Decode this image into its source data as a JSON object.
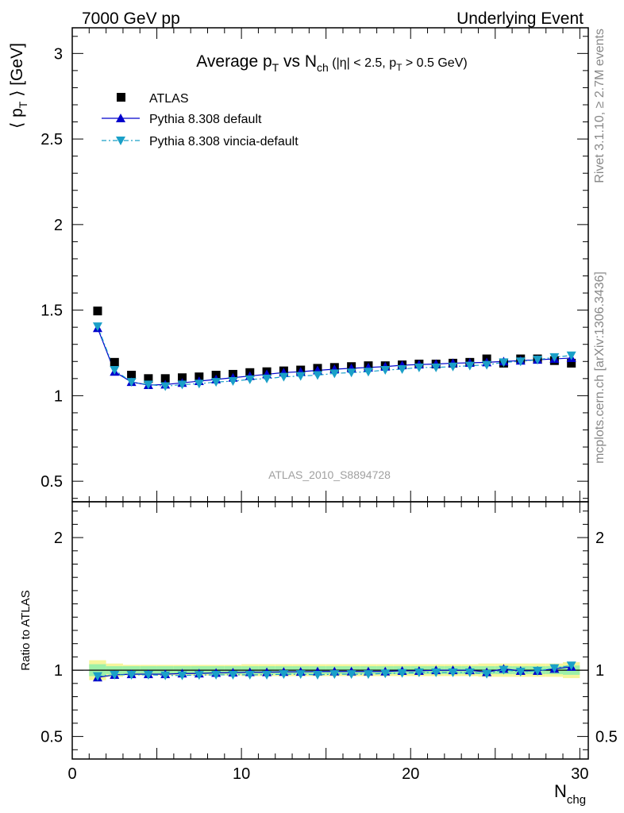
{
  "header": {
    "left": "7000 GeV pp",
    "right": "Underlying Event"
  },
  "title": {
    "main_a": "Average p",
    "main_sub_a": "T",
    "main_b": " vs N",
    "main_sub_b": "ch",
    "cuts_a": " (|η| < 2.5, p",
    "cuts_sub": "T",
    "cuts_b": " > 0.5 GeV)"
  },
  "side_labels": {
    "rivet": "Rivet 3.1.10, ≥ 2.7M events",
    "mcplots": "mcplots.cern.ch [arXiv:1306.3436]"
  },
  "watermark": "ATLAS_2010_S8894728",
  "axes": {
    "ylabel_main_a": "⟨ p",
    "ylabel_main_sub": "T",
    "ylabel_main_b": " ⟩ [GeV]",
    "ylabel_ratio": "Ratio to ATLAS",
    "xlabel": "N",
    "xlabel_sub": "chg"
  },
  "legend": [
    {
      "label": "ATLAS",
      "color": "#000000",
      "marker": "square"
    },
    {
      "label": "Pythia 8.308 default",
      "color": "#0000cc",
      "marker": "triangle-up"
    },
    {
      "label": "Pythia 8.308 vincia-default",
      "color": "#1aa0c8",
      "marker": "triangle-down"
    }
  ],
  "chart_data": {
    "type": "scatter",
    "x": [
      1.5,
      2.5,
      3.5,
      4.5,
      5.5,
      6.5,
      7.5,
      8.5,
      9.5,
      10.5,
      11.5,
      12.5,
      13.5,
      14.5,
      15.5,
      16.5,
      17.5,
      18.5,
      19.5,
      20.5,
      21.5,
      22.5,
      23.5,
      24.5,
      25.5,
      26.5,
      27.5,
      28.5,
      29.5
    ],
    "xlim": [
      0,
      30.5
    ],
    "x_ticks": [
      0,
      10,
      20,
      30
    ],
    "main": {
      "ylim": [
        0.38,
        3.15
      ],
      "y_ticks": [
        0.5,
        1,
        1.5,
        2,
        2.5,
        3
      ],
      "y_tick_labels": [
        "0.5",
        "1",
        "1.5",
        "2",
        "2.5",
        "3"
      ],
      "series": [
        {
          "name": "ATLAS",
          "values": [
            1.495,
            1.195,
            1.12,
            1.1,
            1.1,
            1.105,
            1.11,
            1.12,
            1.125,
            1.135,
            1.14,
            1.145,
            1.15,
            1.16,
            1.165,
            1.17,
            1.175,
            1.175,
            1.18,
            1.185,
            1.185,
            1.19,
            1.195,
            1.215,
            1.19,
            1.215,
            1.215,
            1.205,
            1.19
          ]
        },
        {
          "name": "Pythia 8.308 default",
          "values": [
            1.395,
            1.14,
            1.08,
            1.062,
            1.065,
            1.075,
            1.085,
            1.095,
            1.105,
            1.115,
            1.125,
            1.135,
            1.14,
            1.148,
            1.155,
            1.16,
            1.165,
            1.17,
            1.178,
            1.182,
            1.185,
            1.19,
            1.192,
            1.195,
            1.2,
            1.205,
            1.21,
            1.215,
            1.22
          ]
        },
        {
          "name": "Pythia 8.308 vincia-default",
          "values": [
            1.405,
            1.15,
            1.08,
            1.065,
            1.055,
            1.065,
            1.07,
            1.08,
            1.085,
            1.095,
            1.1,
            1.11,
            1.115,
            1.12,
            1.13,
            1.135,
            1.14,
            1.15,
            1.155,
            1.165,
            1.165,
            1.17,
            1.175,
            1.18,
            1.195,
            1.2,
            1.21,
            1.225,
            1.235
          ]
        }
      ]
    },
    "ratio": {
      "ylim": [
        0.33,
        2.27
      ],
      "y_ticks": [
        0.5,
        1,
        2
      ],
      "y_tick_labels": [
        "0.5",
        "1",
        "2"
      ],
      "band_inner": [
        0.045,
        0.03,
        0.03,
        0.03,
        0.03,
        0.03,
        0.03,
        0.03,
        0.03,
        0.03,
        0.03,
        0.03,
        0.03,
        0.03,
        0.03,
        0.03,
        0.03,
        0.03,
        0.03,
        0.03,
        0.03,
        0.03,
        0.03,
        0.03,
        0.03,
        0.03,
        0.03,
        0.03,
        0.035
      ],
      "band_outer": [
        0.075,
        0.05,
        0.04,
        0.04,
        0.04,
        0.04,
        0.04,
        0.04,
        0.04,
        0.045,
        0.045,
        0.045,
        0.045,
        0.045,
        0.045,
        0.045,
        0.045,
        0.045,
        0.045,
        0.045,
        0.045,
        0.045,
        0.045,
        0.05,
        0.05,
        0.05,
        0.05,
        0.05,
        0.06
      ],
      "series": [
        {
          "name": "Pythia 8.308 default",
          "values": [
            0.945,
            0.965,
            0.97,
            0.97,
            0.97,
            0.975,
            0.975,
            0.98,
            0.982,
            0.985,
            0.985,
            0.987,
            0.988,
            0.99,
            0.99,
            0.99,
            0.99,
            0.99,
            0.995,
            0.995,
            1.0,
            1.0,
            1.0,
            0.985,
            1.01,
            0.995,
            0.995,
            1.01,
            1.025
          ]
        },
        {
          "name": "Pythia 8.308 vincia-default",
          "values": [
            0.955,
            0.965,
            0.965,
            0.965,
            0.96,
            0.96,
            0.963,
            0.965,
            0.965,
            0.965,
            0.965,
            0.97,
            0.97,
            0.965,
            0.97,
            0.97,
            0.97,
            0.975,
            0.978,
            0.983,
            0.983,
            0.983,
            0.983,
            0.972,
            1.003,
            0.988,
            0.995,
            1.015,
            1.035
          ]
        }
      ]
    }
  }
}
